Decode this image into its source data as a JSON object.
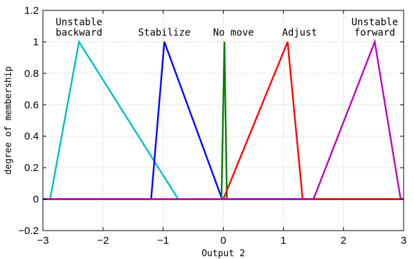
{
  "chart_data": {
    "type": "line",
    "title": "",
    "xlabel": "Output 2",
    "ylabel": "degree of membership",
    "xlim": [
      -3,
      3
    ],
    "ylim": [
      -0.2,
      1.2
    ],
    "xticks": [
      -3,
      -2,
      -1,
      0,
      1,
      2,
      3
    ],
    "yticks": [
      -0.2,
      0,
      0.2,
      0.4,
      0.6,
      0.8,
      1,
      1.2
    ],
    "xtick_labels": [
      "−3",
      "−2",
      "−1",
      "0",
      "1",
      "2",
      "3"
    ],
    "ytick_labels": [
      "−0.2",
      "0",
      "0.2",
      "0.4",
      "0.6",
      "0.8",
      "1",
      "1.2"
    ],
    "grid": true,
    "series": [
      {
        "color": "#00bfbf",
        "x": [
          -3,
          -2.88,
          -2.4,
          -0.75,
          3
        ],
        "y": [
          0,
          0,
          1,
          0,
          0
        ]
      },
      {
        "color": "#0000ff",
        "x": [
          -3,
          -1.2,
          -0.98,
          -0.02,
          3
        ],
        "y": [
          0,
          0,
          1,
          0,
          0
        ]
      },
      {
        "color": "#008000",
        "x": [
          -3,
          -0.03,
          0.02,
          0.06,
          3
        ],
        "y": [
          0,
          0,
          1,
          0,
          0
        ]
      },
      {
        "color": "#ff0000",
        "x": [
          -3,
          0.0,
          1.07,
          1.32,
          3
        ],
        "y": [
          0,
          0,
          1,
          0,
          0
        ]
      },
      {
        "color": "#bf00bf",
        "x": [
          -3,
          1.5,
          2.52,
          2.95,
          3
        ],
        "y": [
          0,
          0,
          1,
          0,
          0
        ]
      }
    ],
    "annotations": [
      {
        "lines": [
          "Unstable",
          "backward"
        ],
        "x": -2.4,
        "y": 1.04
      },
      {
        "lines": [
          "Stabilize"
        ],
        "x": -0.98,
        "y": 1.04
      },
      {
        "lines": [
          "No move"
        ],
        "x": 0.17,
        "y": 1.04
      },
      {
        "lines": [
          "Adjust"
        ],
        "x": 1.27,
        "y": 1.04
      },
      {
        "lines": [
          "Unstable",
          "forward"
        ],
        "x": 2.52,
        "y": 1.04
      }
    ]
  }
}
